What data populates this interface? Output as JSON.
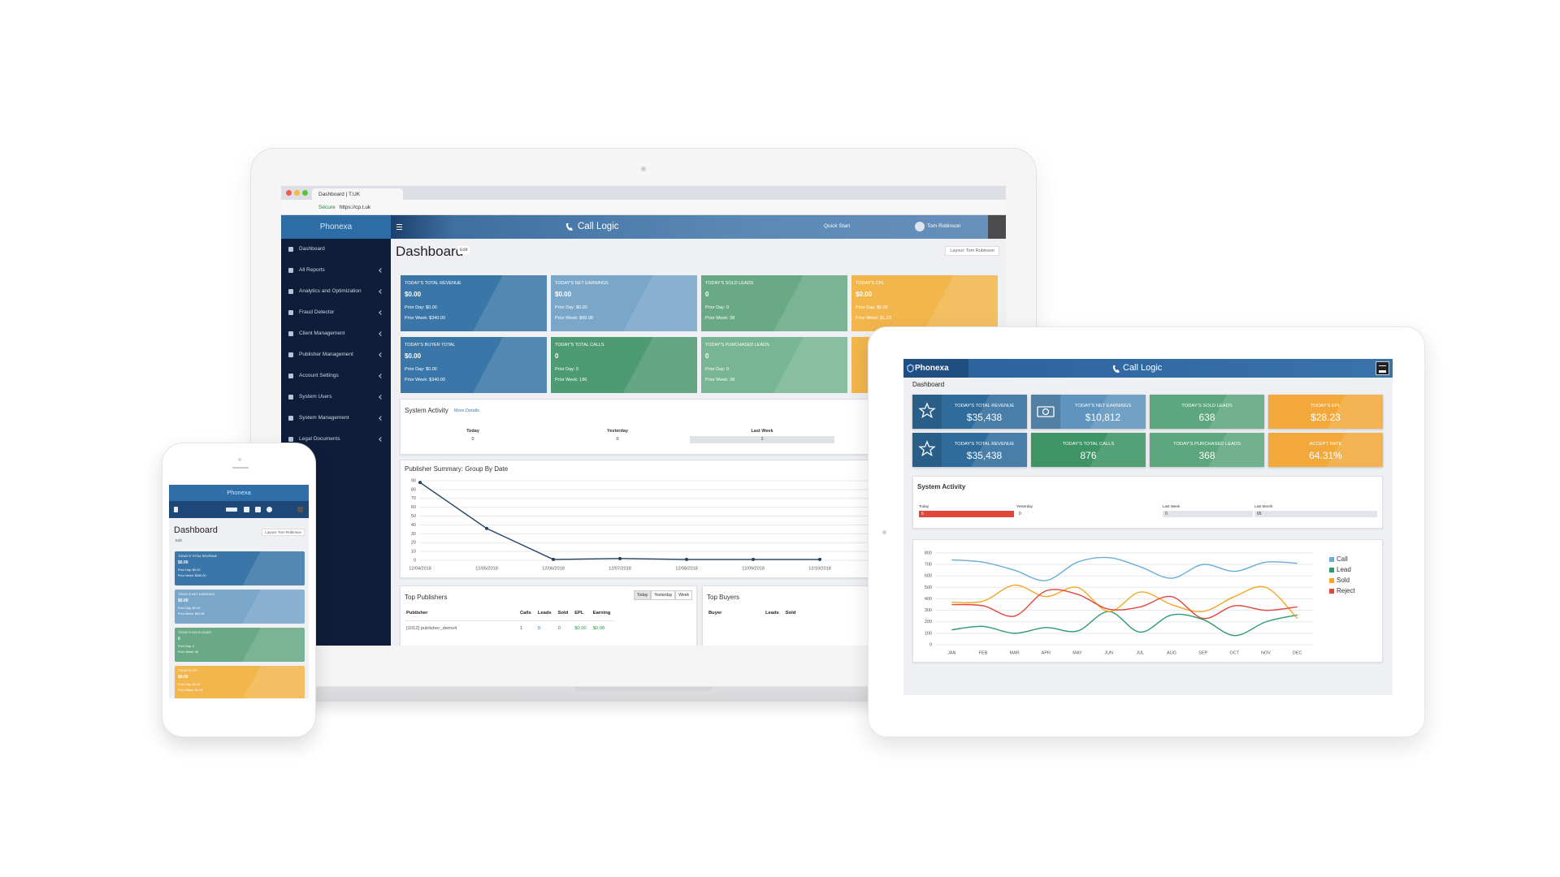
{
  "laptop": {
    "browser": {
      "tab": "Dashboard | T.UK",
      "secure": "Secure",
      "url": "https://cp.t.uk"
    },
    "brand": "Phonexa",
    "menu": [
      "Dashboard",
      "All Reports",
      "Analytics and Optimization",
      "Fraud Detector",
      "Client Management",
      "Publisher Management",
      "Account Settings",
      "System Users",
      "System Management",
      "Legal Documents"
    ],
    "topbar": {
      "title": "Call Logic",
      "quick_start": "Quick Start",
      "user": "Tom Robinson"
    },
    "page": {
      "title": "Dashboard",
      "edit": "Edit",
      "layout": "Layout: Tom Robinson"
    },
    "cards": [
      {
        "title": "TODAY'S TOTAL REVENUE",
        "value": "$0.00",
        "prior_day": "Prior Day: $0.00",
        "prior_week": "Prior Week: $340.00",
        "color": "#3a77a8"
      },
      {
        "title": "TODAY'S NET EARNINGS",
        "value": "$0.00",
        "prior_day": "Prior Day: $0.00",
        "prior_week": "Prior Week: $99.98",
        "color": "#7aa7c9"
      },
      {
        "title": "TODAY'S SOLD LEADS",
        "value": "0",
        "prior_day": "Prior Day: 0",
        "prior_week": "Prior Week: 38",
        "color": "#69a986"
      },
      {
        "title": "TODAY'S CPL",
        "value": "$0.00",
        "prior_day": "Prior Day: $0.00",
        "prior_week": "Prior Week: $1.23",
        "color": "#f3b64c"
      },
      {
        "title": "TODAY'S BUYER TOTAL",
        "value": "$0.00",
        "prior_day": "Prior Day: $0.00",
        "prior_week": "Prior Week: $340.00",
        "color": "#3a77a8"
      },
      {
        "title": "TODAY'S TOTAL CALLS",
        "value": "0",
        "prior_day": "Prior Day: 0",
        "prior_week": "Prior Week: 186",
        "color": "#4e9a73"
      },
      {
        "title": "TODAY'S PURCHASED LEADS",
        "value": "0",
        "prior_day": "Prior Day: 0",
        "prior_week": "Prior Week: 38",
        "color": "#78b594"
      }
    ],
    "system_activity": {
      "title": "System Activity",
      "more": "More Details",
      "columns": [
        {
          "label": "Today",
          "value": "0"
        },
        {
          "label": "Yesterday",
          "value": "0"
        },
        {
          "label": "Last Week",
          "value": "1"
        }
      ]
    },
    "publisher_chart": {
      "type": "line",
      "title": "Publisher Summary: Group By Date",
      "categories": [
        "12/04/2018",
        "12/05/2018",
        "12/06/2018",
        "12/07/2018",
        "12/08/2018",
        "12/09/2018",
        "12/10/2018"
      ],
      "values": [
        88,
        36,
        1,
        2,
        1,
        1,
        1
      ],
      "color": "#23405f",
      "ylim": [
        0,
        90
      ],
      "yticks": [
        0,
        10,
        20,
        30,
        40,
        50,
        60,
        70,
        80,
        90
      ],
      "grid": true
    },
    "top_publishers": {
      "title": "Top Publishers",
      "tabs": [
        "Today",
        "Yesterday",
        "Week"
      ],
      "columns": [
        "Publisher",
        "Calls",
        "Leads",
        "Sold",
        "EPL",
        "Earning"
      ],
      "rows": [
        [
          "[1012] publisher_demo4",
          "1",
          "0",
          "0",
          "$0.00",
          "$0.00"
        ]
      ]
    },
    "top_buyers": {
      "title": "Top Buyers",
      "columns": [
        "Buyer",
        "Leads",
        "Sold"
      ]
    }
  },
  "tablet": {
    "brand": "Phonexa",
    "title": "Call Logic",
    "page_title": "Dashboard",
    "cards": [
      {
        "title": "TODAY'S TOTAL REVENUE",
        "value": "$35,438",
        "color": "#2f6c9c"
      },
      {
        "title": "TODAY'S NET EARNINGS",
        "value": "$10,812",
        "color": "#5f94be"
      },
      {
        "title": "TODAY'S SOLD LEADS",
        "value": "638",
        "color": "#5ea67e"
      },
      {
        "title": "TODAY'S EPL",
        "value": "$28.23",
        "color": "#f3a93a"
      },
      {
        "title": "TODAY'S TOTAL REVENUE",
        "value": "$35,438",
        "color": "#2f6c9c"
      },
      {
        "title": "TODAY'S TOTAL CALLS",
        "value": "876",
        "color": "#3e9464"
      },
      {
        "title": "TODAY'S PURCHASED LEADS",
        "value": "368",
        "color": "#5ea67e"
      },
      {
        "title": "ACCEPT RATE",
        "value": "64.31%",
        "color": "#f3a93a"
      }
    ],
    "system_activity": {
      "title": "System Activity",
      "columns": [
        {
          "label": "Today",
          "value": "6",
          "color": "#e0463a"
        },
        {
          "label": "Yesterday",
          "value": "0"
        },
        {
          "label": "Last Week",
          "value": "0"
        },
        {
          "label": "Last Month",
          "value": "65"
        }
      ]
    },
    "chart": {
      "type": "line",
      "categories": [
        "JAN",
        "FEB",
        "MAR",
        "APR",
        "MAY",
        "JUN",
        "JUL",
        "AUG",
        "SEP",
        "OCT",
        "NOV",
        "DEC"
      ],
      "ylim": [
        0,
        800
      ],
      "yticks": [
        0,
        100,
        200,
        300,
        400,
        500,
        600,
        700,
        800
      ],
      "grid": true,
      "legend": "right",
      "series": [
        {
          "name": "Call",
          "color": "#6aaed6",
          "values": [
            740,
            720,
            650,
            560,
            720,
            760,
            680,
            580,
            700,
            640,
            720,
            710
          ]
        },
        {
          "name": "Lead",
          "color": "#2e9b6c",
          "values": [
            130,
            160,
            100,
            150,
            120,
            290,
            110,
            260,
            220,
            80,
            200,
            260
          ]
        },
        {
          "name": "Sold",
          "color": "#f5a623",
          "values": [
            370,
            380,
            520,
            420,
            500,
            290,
            460,
            350,
            290,
            420,
            500,
            230
          ]
        },
        {
          "name": "Reject",
          "color": "#e0463a",
          "values": [
            350,
            340,
            250,
            470,
            440,
            310,
            330,
            420,
            230,
            340,
            300,
            330
          ]
        }
      ]
    }
  }
}
